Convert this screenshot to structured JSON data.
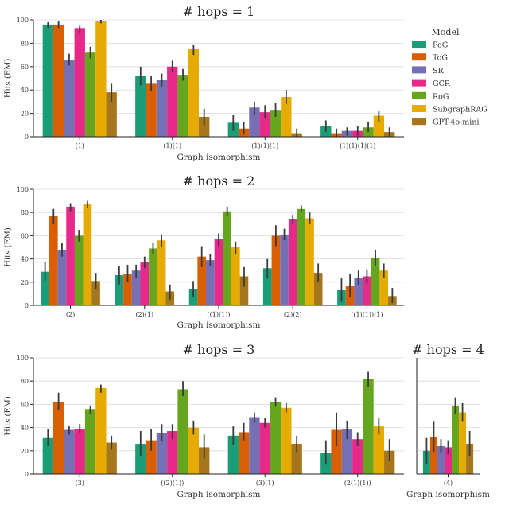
{
  "colors": {
    "PoG": "#1b9e77",
    "ToG": "#d95f02",
    "SR": "#7570b3",
    "GCR": "#e7298a",
    "RoG": "#66a61e",
    "SubgraphRAG": "#e6ab02",
    "GPT-4o-mini": "#a6761d"
  },
  "legend": {
    "title": "Model",
    "items": [
      "PoG",
      "ToG",
      "SR",
      "GCR",
      "RoG",
      "SubgraphRAG",
      "GPT-4o-mini"
    ]
  },
  "chart_data": [
    {
      "type": "bar",
      "title": "# hops = 1",
      "xlabel": "Graph isomorphism",
      "ylabel": "Hits (EM)",
      "ylim": [
        0,
        100
      ],
      "yticks": [
        "0",
        "20",
        "40",
        "60",
        "80",
        "100"
      ],
      "grid": true,
      "categories": [
        "(1)",
        "(1)(1)",
        "(1)(1)(1)",
        "(1)(1)(1)(1)"
      ],
      "series": [
        {
          "name": "PoG",
          "values": [
            96,
            52,
            12,
            9
          ],
          "err": [
            [
              93,
              98
            ],
            [
              44,
              60
            ],
            [
              5,
              19
            ],
            [
              4,
              14
            ]
          ]
        },
        {
          "name": "ToG",
          "values": [
            96,
            46,
            7,
            3
          ],
          "err": [
            [
              93,
              99
            ],
            [
              39,
              52
            ],
            [
              2,
              13
            ],
            [
              0,
              7
            ]
          ]
        },
        {
          "name": "SR",
          "values": [
            66,
            49,
            25,
            5
          ],
          "err": [
            [
              61,
              71
            ],
            [
              43,
              54
            ],
            [
              19,
              30
            ],
            [
              1,
              8
            ]
          ]
        },
        {
          "name": "GCR",
          "values": [
            93,
            60,
            21,
            5
          ],
          "err": [
            [
              89,
              95
            ],
            [
              55,
              65
            ],
            [
              16,
              27
            ],
            [
              1,
              9
            ]
          ]
        },
        {
          "name": "RoG",
          "values": [
            72,
            53,
            23,
            8
          ],
          "err": [
            [
              67,
              77
            ],
            [
              48,
              58
            ],
            [
              17,
              29
            ],
            [
              4,
              13
            ]
          ]
        },
        {
          "name": "SubgraphRAG",
          "values": [
            99,
            75,
            34,
            18
          ],
          "err": [
            [
              97,
              100
            ],
            [
              70,
              79
            ],
            [
              28,
              40
            ],
            [
              13,
              22
            ]
          ]
        },
        {
          "name": "GPT-4o-mini",
          "values": [
            38,
            17,
            3,
            4
          ],
          "err": [
            [
              30,
              46
            ],
            [
              10,
              24
            ],
            [
              0,
              7
            ],
            [
              0,
              8
            ]
          ]
        }
      ]
    },
    {
      "type": "bar",
      "title": "# hops = 2",
      "xlabel": "Graph isomorphism",
      "ylabel": "Hits (EM)",
      "ylim": [
        0,
        100
      ],
      "yticks": [
        "0",
        "20",
        "40",
        "60",
        "80",
        "100"
      ],
      "grid": true,
      "categories": [
        "(2)",
        "(2)(1)",
        "((1)(1))",
        "(2)(2)",
        "((1)(1))(1)"
      ],
      "series": [
        {
          "name": "PoG",
          "values": [
            29,
            26,
            14,
            32,
            13
          ],
          "err": [
            [
              21,
              37
            ],
            [
              18,
              34
            ],
            [
              7,
              21
            ],
            [
              23,
              40
            ],
            [
              3,
              24
            ]
          ]
        },
        {
          "name": "ToG",
          "values": [
            77,
            27,
            42,
            60,
            17
          ],
          "err": [
            [
              70,
              83
            ],
            [
              20,
              35
            ],
            [
              33,
              51
            ],
            [
              51,
              69
            ],
            [
              7,
              27
            ]
          ]
        },
        {
          "name": "SR",
          "values": [
            48,
            30,
            39,
            61,
            24
          ],
          "err": [
            [
              42,
              54
            ],
            [
              24,
              35
            ],
            [
              34,
              44
            ],
            [
              56,
              66
            ],
            [
              18,
              30
            ]
          ]
        },
        {
          "name": "GCR",
          "values": [
            85,
            37,
            57,
            74,
            25
          ],
          "err": [
            [
              81,
              88
            ],
            [
              32,
              42
            ],
            [
              51,
              62
            ],
            [
              70,
              78
            ],
            [
              19,
              31
            ]
          ]
        },
        {
          "name": "RoG",
          "values": [
            60,
            49,
            81,
            83,
            41
          ],
          "err": [
            [
              55,
              65
            ],
            [
              44,
              54
            ],
            [
              77,
              85
            ],
            [
              80,
              86
            ],
            [
              34,
              48
            ]
          ]
        },
        {
          "name": "SubgraphRAG",
          "values": [
            87,
            56,
            50,
            75,
            30
          ],
          "err": [
            [
              84,
              90
            ],
            [
              50,
              61
            ],
            [
              44,
              55
            ],
            [
              70,
              80
            ],
            [
              24,
              36
            ]
          ]
        },
        {
          "name": "GPT-4o-mini",
          "values": [
            21,
            12,
            25,
            28,
            8
          ],
          "err": [
            [
              14,
              28
            ],
            [
              5,
              18
            ],
            [
              16,
              33
            ],
            [
              20,
              36
            ],
            [
              2,
              15
            ]
          ]
        }
      ]
    },
    {
      "type": "bar",
      "title": "# hops = 3",
      "xlabel": "Graph isomorphism",
      "ylabel": "Hits (EM)",
      "ylim": [
        0,
        100
      ],
      "yticks": [
        "0",
        "20",
        "40",
        "60",
        "80",
        "100"
      ],
      "grid": true,
      "categories": [
        "(3)",
        "((2)(1))",
        "(3)(1)",
        "(2(1)(1))"
      ],
      "series": [
        {
          "name": "PoG",
          "values": [
            31,
            26,
            33,
            18
          ],
          "err": [
            [
              24,
              39
            ],
            [
              15,
              37
            ],
            [
              25,
              41
            ],
            [
              8,
              29
            ]
          ]
        },
        {
          "name": "ToG",
          "values": [
            62,
            29,
            36,
            38
          ],
          "err": [
            [
              55,
              70
            ],
            [
              20,
              39
            ],
            [
              29,
              44
            ],
            [
              24,
              53
            ]
          ]
        },
        {
          "name": "SR",
          "values": [
            38,
            35,
            49,
            39
          ],
          "err": [
            [
              34,
              41
            ],
            [
              28,
              43
            ],
            [
              44,
              53
            ],
            [
              30,
              46
            ]
          ]
        },
        {
          "name": "GCR",
          "values": [
            39,
            37,
            44,
            30
          ],
          "err": [
            [
              35,
              43
            ],
            [
              30,
              43
            ],
            [
              40,
              48
            ],
            [
              24,
              36
            ]
          ]
        },
        {
          "name": "RoG",
          "values": [
            56,
            73,
            62,
            82
          ],
          "err": [
            [
              52,
              59
            ],
            [
              67,
              80
            ],
            [
              58,
              66
            ],
            [
              75,
              88
            ]
          ]
        },
        {
          "name": "SubgraphRAG",
          "values": [
            74,
            40,
            57,
            41
          ],
          "err": [
            [
              70,
              77
            ],
            [
              34,
              46
            ],
            [
              53,
              61
            ],
            [
              34,
              48
            ]
          ]
        },
        {
          "name": "GPT-4o-mini",
          "values": [
            27,
            23,
            26,
            20
          ],
          "err": [
            [
              21,
              33
            ],
            [
              13,
              34
            ],
            [
              19,
              33
            ],
            [
              11,
              30
            ]
          ]
        }
      ]
    },
    {
      "type": "bar",
      "title": "# hops = 4",
      "xlabel": "Graph isomorphism",
      "ylabel": "",
      "ylim": [
        0,
        100
      ],
      "yticks": [],
      "grid": true,
      "categories": [
        "(4)"
      ],
      "series": [
        {
          "name": "PoG",
          "values": [
            20
          ],
          "err": [
            [
              9,
              31
            ]
          ]
        },
        {
          "name": "ToG",
          "values": [
            32
          ],
          "err": [
            [
              19,
              45
            ]
          ]
        },
        {
          "name": "SR",
          "values": [
            24
          ],
          "err": [
            [
              18,
              30
            ]
          ]
        },
        {
          "name": "GCR",
          "values": [
            23
          ],
          "err": [
            [
              17,
              29
            ]
          ]
        },
        {
          "name": "RoG",
          "values": [
            59
          ],
          "err": [
            [
              52,
              66
            ]
          ]
        },
        {
          "name": "SubgraphRAG",
          "values": [
            53
          ],
          "err": [
            [
              45,
              61
            ]
          ]
        },
        {
          "name": "GPT-4o-mini",
          "values": [
            26
          ],
          "err": [
            [
              15,
              37
            ]
          ]
        }
      ]
    }
  ]
}
